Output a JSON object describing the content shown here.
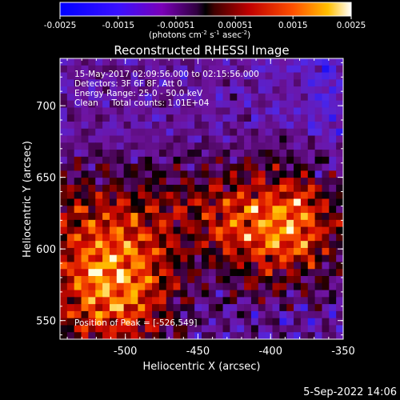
{
  "chart_data": {
    "type": "heatmap",
    "title": "Reconstructed RHESSI Image",
    "xlabel": "Heliocentric X (arcsec)",
    "ylabel": "Heliocentric Y (arcsec)",
    "xlim": [
      -545,
      -350
    ],
    "ylim": [
      537,
      733
    ],
    "x_ticks": [
      -500,
      -450,
      -400,
      -350
    ],
    "x_tick_labels": [
      "-500",
      "-450",
      "-400",
      "-350"
    ],
    "y_ticks": [
      550,
      600,
      650,
      700
    ],
    "y_tick_labels": [
      "550",
      "600",
      "650",
      "700"
    ],
    "colorbar": {
      "range": [
        -0.0025,
        0.0025
      ],
      "tick_values": [
        -0.0025,
        -0.0015,
        -0.00051,
        0.00051,
        0.0015,
        0.0025
      ],
      "tick_labels": [
        "-0.0025",
        "-0.0015",
        "-0.00051",
        "0.00051",
        "0.0015",
        "0.0025"
      ],
      "unit_text": "(photons cm",
      "unit_sup1": "-2",
      "unit_mid": " s",
      "unit_sup2": "-1",
      "unit_end": " asec",
      "unit_sup3": "-2",
      "unit_close": ")"
    },
    "annotations": [
      "15-May-2017 02:09:56.000 to 02:15:56.000",
      "Detectors: 3F 6F 8F, Att 0",
      "Energy Range: 25.0 - 50.0 keV",
      "Clean     Total counts: 1.01E+04"
    ],
    "peak_label": "Position of Peak = [-526,549]",
    "peak": [
      -526,
      549
    ],
    "grid": false,
    "colors": {
      "cmap": [
        "#0000ff",
        "#5a00d8",
        "#7a00a8",
        "#000000",
        "#a00000",
        "#ff3000",
        "#ffb000",
        "#ffffff"
      ]
    }
  },
  "footer": {
    "date_text": "5-Sep-2022 14:06"
  }
}
